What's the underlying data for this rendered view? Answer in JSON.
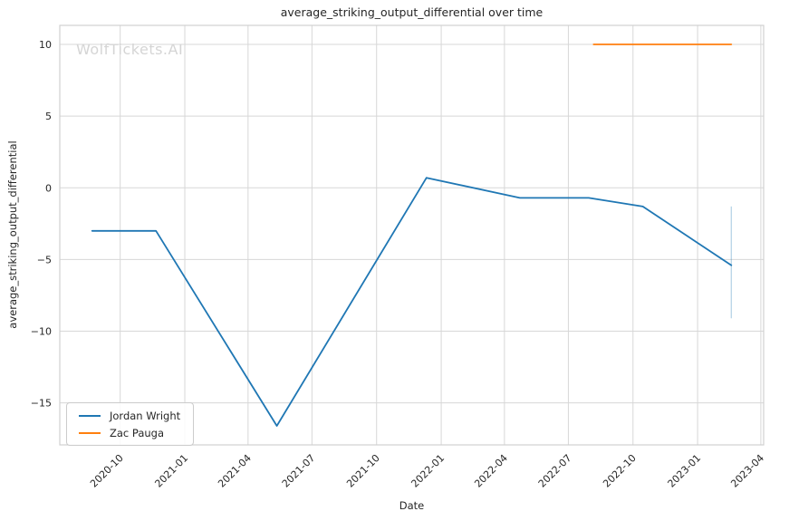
{
  "watermark": "WolfTickets.AI",
  "colors": {
    "blue": "#1f77b4",
    "orange": "#ff7f0e",
    "grid": "#d7d7d7",
    "border": "#d0d0d0",
    "text": "#262626",
    "watermark": "#d5d5d5",
    "error_bar": "#1f77b4"
  },
  "legend": {
    "position": "lower left"
  },
  "chart_data": {
    "type": "line",
    "title": "average_striking_output_differential over time",
    "xlabel": "Date",
    "ylabel": "average_striking_output_differential",
    "grid": true,
    "legend_position": "lower left",
    "xlim": [
      "2020-07-07",
      "2023-04-05"
    ],
    "ylim": [
      -17.93,
      11.33
    ],
    "x_tick_labels": [
      "2020-10",
      "2021-01",
      "2021-04",
      "2021-07",
      "2021-10",
      "2022-01",
      "2022-04",
      "2022-07",
      "2022-10",
      "2023-01",
      "2023-04"
    ],
    "y_ticks": [
      10,
      5,
      0,
      -5,
      -10,
      -15
    ],
    "y_tick_labels": [
      "10",
      "5",
      "0",
      "−5",
      "−10",
      "−15"
    ],
    "series": [
      {
        "name": "Jordan Wright",
        "color": "#1f77b4",
        "x": [
          "2020-08-22",
          "2020-11-21",
          "2021-05-12",
          "2021-12-11",
          "2022-04-23",
          "2022-07-30",
          "2022-10-15",
          "2023-02-18"
        ],
        "y": [
          -3.0,
          -3.0,
          -16.6,
          0.7,
          -0.7,
          -0.7,
          -1.3,
          -5.4
        ],
        "error_bars": [
          {
            "x": "2023-02-18",
            "lo": -9.1,
            "hi": -1.3
          }
        ]
      },
      {
        "name": "Zac Pauga",
        "color": "#ff7f0e",
        "x": [
          "2022-08-06",
          "2023-02-18"
        ],
        "y": [
          10,
          10
        ],
        "error_bars": []
      }
    ]
  }
}
